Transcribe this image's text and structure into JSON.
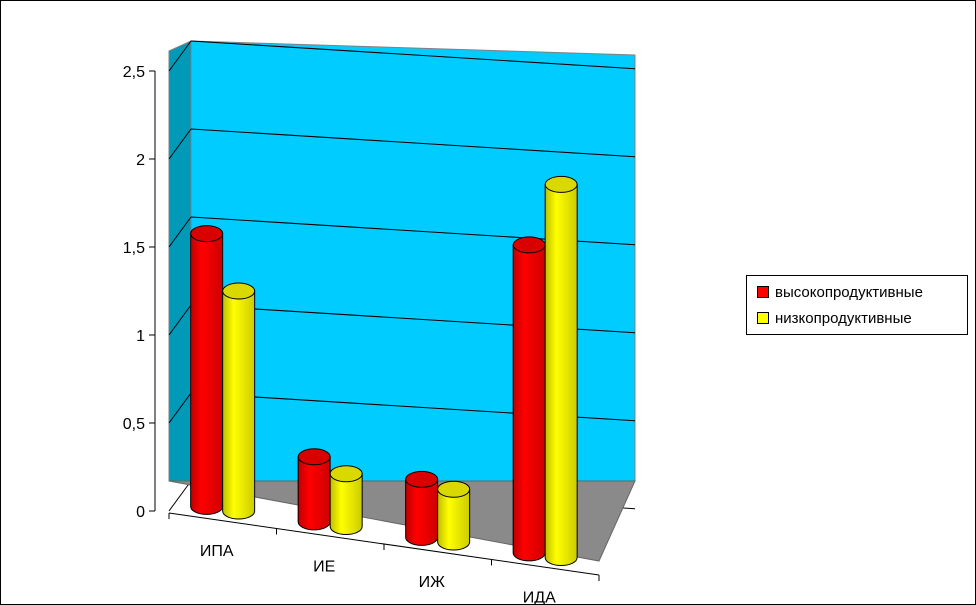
{
  "chart_data": {
    "type": "bar",
    "style": "3d-cylinder",
    "categories": [
      "ИПА",
      "ИЕ",
      "ИЖ",
      "ИДА"
    ],
    "series": [
      {
        "name": "высокопродуктивные",
        "color": "#ff0000",
        "values": [
          1.55,
          0.37,
          0.33,
          1.75
        ]
      },
      {
        "name": "низкопродуктивные",
        "color": "#ffff00",
        "values": [
          1.25,
          0.3,
          0.3,
          2.12
        ]
      }
    ],
    "yticks": [
      "0",
      "0,5",
      "1",
      "1,5",
      "2",
      "2,5"
    ],
    "ylim": [
      0,
      2.5
    ],
    "grid": true,
    "legend_position": "right",
    "colors": {
      "wall": "#00ccff",
      "side_wall": "#0099b8",
      "floor": "#8a8a8a",
      "grid": "#000000"
    }
  }
}
